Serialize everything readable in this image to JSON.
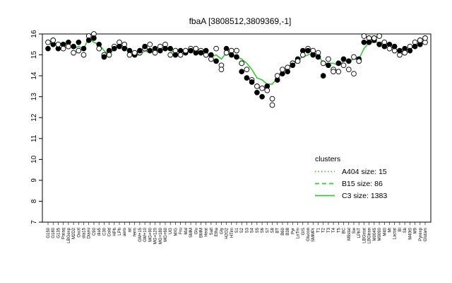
{
  "chart_data": {
    "type": "line",
    "title": "fbaA [3808512,3809369,-1]",
    "xlabel": "",
    "ylabel": "",
    "ylim": [
      7,
      16
    ],
    "yticks": [
      7,
      8,
      9,
      10,
      11,
      12,
      13,
      14,
      15,
      16
    ],
    "grid": false,
    "legend": {
      "title": "clusters",
      "placement": "right",
      "entries": [
        {
          "label": "A404 size: 15",
          "style": "dotted",
          "color": "#33cc33"
        },
        {
          "label": "B15 size: 86",
          "style": "dashed",
          "color": "#33cc33"
        },
        {
          "label": "C3 size: 1383",
          "style": "solid",
          "color": "#33cc33"
        }
      ]
    },
    "x_tick_labels": [
      "G150",
      "G180",
      "G135",
      "Paraq",
      "LBGexp",
      "M2D2",
      "Oxctl",
      "dia15",
      "Diami",
      "C90",
      "dia5",
      "C30",
      "Cold",
      "HPh",
      "LPh",
      "aero",
      "nit",
      "ferm",
      "GM+15",
      "GM+10",
      "MG+90",
      "MG+120",
      "MG+180",
      "MG+60",
      "UG",
      "M/G",
      "Fru",
      "Mal",
      "SMM",
      "Glu",
      "BMM",
      "Heat",
      "Salt",
      "Etha",
      "Gly",
      "H2O2",
      "HTim",
      "S1",
      "S2",
      "S3",
      "S4",
      "S5",
      "S6",
      "S7",
      "S8",
      "BT",
      "B60",
      "B38",
      "Pyr",
      "LoTm",
      "GIS",
      "Glucon",
      "SMMPr",
      "T1",
      "T2",
      "T3",
      "T4",
      "T5",
      "BC",
      "M9stat",
      "Sw",
      "LPhT",
      "LBGstat",
      "LBGtran",
      "M0045",
      "M0090",
      "M40",
      "Mt",
      "Lactat",
      "BI",
      "Sb",
      "M40t0",
      "M9",
      "Pyrexp",
      "Glutam"
    ],
    "series": [
      {
        "name": "",
        "style": "solid",
        "color": "#33cc33",
        "values": [
          15.7,
          15.6,
          15.5,
          15.6,
          15.5,
          15.3,
          15.4,
          15.3,
          15.8,
          15.6,
          15.5,
          15.2,
          15.0,
          15.3,
          15.4,
          15.5,
          15.2,
          15.0,
          15.0,
          15.2,
          15.1,
          15.2,
          15.2,
          15.3,
          15.2,
          15.1,
          15.0,
          15.1,
          15.2,
          15.2,
          15.2,
          15.0,
          14.9,
          15.0,
          14.8,
          15.1,
          15.0,
          14.9,
          14.8,
          14.6,
          14.3,
          13.9,
          13.8,
          13.6,
          13.6,
          13.9,
          14.2,
          14.4,
          14.6,
          14.8,
          14.9,
          15.0,
          15.1,
          15.0,
          14.6,
          14.6,
          14.6,
          14.5,
          14.7,
          14.7,
          14.8,
          14.8,
          15.3,
          15.6,
          15.6,
          15.6,
          15.6,
          15.4,
          15.3,
          15.1,
          15.2,
          15.3,
          15.4,
          15.5,
          15.6
        ]
      }
    ],
    "points": [
      {
        "x": 0,
        "y": 15.3,
        "filled": true
      },
      {
        "x": 0,
        "y": 15.6,
        "filled": false
      },
      {
        "x": 1,
        "y": 15.5,
        "filled": true
      },
      {
        "x": 1,
        "y": 15.7,
        "filled": false
      },
      {
        "x": 2,
        "y": 15.3,
        "filled": true
      },
      {
        "x": 2,
        "y": 15.5,
        "filled": false
      },
      {
        "x": 3,
        "y": 15.5,
        "filled": true
      },
      {
        "x": 3,
        "y": 15.3,
        "filled": false
      },
      {
        "x": 4,
        "y": 15.6,
        "filled": true
      },
      {
        "x": 4,
        "y": 15.4,
        "filled": false
      },
      {
        "x": 5,
        "y": 15.1,
        "filled": false
      },
      {
        "x": 5,
        "y": 15.4,
        "filled": true
      },
      {
        "x": 6,
        "y": 15.6,
        "filled": true
      },
      {
        "x": 6,
        "y": 15.2,
        "filled": false
      },
      {
        "x": 7,
        "y": 15.0,
        "filled": false
      },
      {
        "x": 7,
        "y": 15.3,
        "filled": true
      },
      {
        "x": 8,
        "y": 15.9,
        "filled": false
      },
      {
        "x": 8,
        "y": 15.7,
        "filled": true
      },
      {
        "x": 9,
        "y": 16.0,
        "filled": false
      },
      {
        "x": 9,
        "y": 15.8,
        "filled": true
      },
      {
        "x": 10,
        "y": 15.5,
        "filled": true
      },
      {
        "x": 10,
        "y": 15.3,
        "filled": false
      },
      {
        "x": 11,
        "y": 15.0,
        "filled": false
      },
      {
        "x": 11,
        "y": 14.9,
        "filled": true
      },
      {
        "x": 12,
        "y": 15.2,
        "filled": true
      },
      {
        "x": 12,
        "y": 15.0,
        "filled": false
      },
      {
        "x": 13,
        "y": 15.4,
        "filled": false
      },
      {
        "x": 13,
        "y": 15.3,
        "filled": true
      },
      {
        "x": 14,
        "y": 15.6,
        "filled": false
      },
      {
        "x": 14,
        "y": 15.4,
        "filled": true
      },
      {
        "x": 15,
        "y": 15.5,
        "filled": false
      },
      {
        "x": 15,
        "y": 15.3,
        "filled": true
      },
      {
        "x": 16,
        "y": 15.2,
        "filled": true
      },
      {
        "x": 16,
        "y": 15.0,
        "filled": false
      },
      {
        "x": 17,
        "y": 15.0,
        "filled": true
      },
      {
        "x": 17,
        "y": 15.1,
        "filled": false
      },
      {
        "x": 18,
        "y": 15.1,
        "filled": false
      },
      {
        "x": 18,
        "y": 15.2,
        "filled": true
      },
      {
        "x": 19,
        "y": 15.3,
        "filled": false
      },
      {
        "x": 19,
        "y": 15.4,
        "filled": true
      },
      {
        "x": 20,
        "y": 15.2,
        "filled": true
      },
      {
        "x": 20,
        "y": 15.5,
        "filled": false
      },
      {
        "x": 21,
        "y": 15.3,
        "filled": true
      },
      {
        "x": 21,
        "y": 15.1,
        "filled": false
      },
      {
        "x": 22,
        "y": 15.4,
        "filled": false
      },
      {
        "x": 22,
        "y": 15.2,
        "filled": true
      },
      {
        "x": 23,
        "y": 15.5,
        "filled": false
      },
      {
        "x": 23,
        "y": 15.3,
        "filled": true
      },
      {
        "x": 24,
        "y": 15.3,
        "filled": true
      },
      {
        "x": 24,
        "y": 15.0,
        "filled": false
      },
      {
        "x": 25,
        "y": 15.2,
        "filled": false
      },
      {
        "x": 25,
        "y": 15.0,
        "filled": true
      },
      {
        "x": 26,
        "y": 15.2,
        "filled": true
      },
      {
        "x": 26,
        "y": 15.0,
        "filled": false
      },
      {
        "x": 27,
        "y": 15.1,
        "filled": true
      },
      {
        "x": 27,
        "y": 15.2,
        "filled": false
      },
      {
        "x": 28,
        "y": 15.3,
        "filled": false
      },
      {
        "x": 28,
        "y": 15.2,
        "filled": true
      },
      {
        "x": 29,
        "y": 15.1,
        "filled": true
      },
      {
        "x": 29,
        "y": 15.3,
        "filled": false
      },
      {
        "x": 30,
        "y": 15.2,
        "filled": false
      },
      {
        "x": 30,
        "y": 15.1,
        "filled": true
      },
      {
        "x": 31,
        "y": 15.0,
        "filled": false
      },
      {
        "x": 31,
        "y": 15.2,
        "filled": true
      },
      {
        "x": 32,
        "y": 14.8,
        "filled": false
      },
      {
        "x": 32,
        "y": 15.0,
        "filled": true
      },
      {
        "x": 33,
        "y": 15.3,
        "filled": false
      },
      {
        "x": 33,
        "y": 14.7,
        "filled": true
      },
      {
        "x": 34,
        "y": 14.5,
        "filled": false
      },
      {
        "x": 34,
        "y": 14.3,
        "filled": false
      },
      {
        "x": 35,
        "y": 15.3,
        "filled": true
      },
      {
        "x": 35,
        "y": 15.1,
        "filled": false
      },
      {
        "x": 36,
        "y": 15.2,
        "filled": false
      },
      {
        "x": 36,
        "y": 15.0,
        "filled": true
      },
      {
        "x": 37,
        "y": 15.2,
        "filled": false
      },
      {
        "x": 37,
        "y": 14.9,
        "filled": true
      },
      {
        "x": 38,
        "y": 14.6,
        "filled": false
      },
      {
        "x": 38,
        "y": 14.2,
        "filled": true
      },
      {
        "x": 39,
        "y": 14.3,
        "filled": false
      },
      {
        "x": 39,
        "y": 13.9,
        "filled": true
      },
      {
        "x": 40,
        "y": 13.8,
        "filled": false
      },
      {
        "x": 40,
        "y": 13.7,
        "filled": true
      },
      {
        "x": 41,
        "y": 13.5,
        "filled": false
      },
      {
        "x": 41,
        "y": 13.2,
        "filled": true
      },
      {
        "x": 42,
        "y": 13.0,
        "filled": true
      },
      {
        "x": 42,
        "y": 13.4,
        "filled": false
      },
      {
        "x": 43,
        "y": 13.5,
        "filled": true
      },
      {
        "x": 43,
        "y": 13.3,
        "filled": false
      },
      {
        "x": 44,
        "y": 12.6,
        "filled": false
      },
      {
        "x": 44,
        "y": 12.9,
        "filled": false
      },
      {
        "x": 45,
        "y": 13.8,
        "filled": true
      },
      {
        "x": 45,
        "y": 14.0,
        "filled": false
      },
      {
        "x": 46,
        "y": 14.1,
        "filled": true
      },
      {
        "x": 46,
        "y": 14.3,
        "filled": false
      },
      {
        "x": 47,
        "y": 14.4,
        "filled": false
      },
      {
        "x": 47,
        "y": 14.2,
        "filled": true
      },
      {
        "x": 48,
        "y": 14.6,
        "filled": false
      },
      {
        "x": 48,
        "y": 14.5,
        "filled": true
      },
      {
        "x": 49,
        "y": 14.8,
        "filled": true
      },
      {
        "x": 49,
        "y": 14.7,
        "filled": false
      },
      {
        "x": 50,
        "y": 15.2,
        "filled": true
      },
      {
        "x": 50,
        "y": 15.0,
        "filled": false
      },
      {
        "x": 51,
        "y": 15.3,
        "filled": false
      },
      {
        "x": 51,
        "y": 15.2,
        "filled": true
      },
      {
        "x": 52,
        "y": 15.2,
        "filled": false
      },
      {
        "x": 52,
        "y": 15.0,
        "filled": true
      },
      {
        "x": 53,
        "y": 15.1,
        "filled": false
      },
      {
        "x": 53,
        "y": 14.9,
        "filled": true
      },
      {
        "x": 54,
        "y": 14.0,
        "filled": true
      },
      {
        "x": 54,
        "y": 14.6,
        "filled": false
      },
      {
        "x": 55,
        "y": 14.5,
        "filled": true
      },
      {
        "x": 55,
        "y": 14.8,
        "filled": false
      },
      {
        "x": 56,
        "y": 14.3,
        "filled": false
      },
      {
        "x": 56,
        "y": 14.2,
        "filled": false
      },
      {
        "x": 57,
        "y": 14.2,
        "filled": false
      },
      {
        "x": 57,
        "y": 14.6,
        "filled": true
      },
      {
        "x": 58,
        "y": 14.8,
        "filled": true
      },
      {
        "x": 58,
        "y": 14.5,
        "filled": false
      },
      {
        "x": 59,
        "y": 14.3,
        "filled": false
      },
      {
        "x": 59,
        "y": 14.7,
        "filled": true
      },
      {
        "x": 60,
        "y": 14.1,
        "filled": false
      },
      {
        "x": 60,
        "y": 14.9,
        "filled": false
      },
      {
        "x": 61,
        "y": 14.8,
        "filled": true
      },
      {
        "x": 61,
        "y": 14.7,
        "filled": false
      },
      {
        "x": 62,
        "y": 15.6,
        "filled": true
      },
      {
        "x": 62,
        "y": 15.9,
        "filled": false
      },
      {
        "x": 63,
        "y": 15.8,
        "filled": false
      },
      {
        "x": 63,
        "y": 15.6,
        "filled": true
      },
      {
        "x": 64,
        "y": 15.7,
        "filled": true
      },
      {
        "x": 64,
        "y": 15.8,
        "filled": false
      },
      {
        "x": 65,
        "y": 15.9,
        "filled": false
      },
      {
        "x": 65,
        "y": 15.5,
        "filled": true
      },
      {
        "x": 66,
        "y": 15.6,
        "filled": false
      },
      {
        "x": 66,
        "y": 15.4,
        "filled": true
      },
      {
        "x": 67,
        "y": 15.5,
        "filled": true
      },
      {
        "x": 67,
        "y": 15.3,
        "filled": false
      },
      {
        "x": 68,
        "y": 15.2,
        "filled": false
      },
      {
        "x": 68,
        "y": 15.4,
        "filled": true
      },
      {
        "x": 69,
        "y": 15.0,
        "filled": false
      },
      {
        "x": 69,
        "y": 15.2,
        "filled": true
      },
      {
        "x": 70,
        "y": 15.3,
        "filled": true
      },
      {
        "x": 70,
        "y": 15.1,
        "filled": false
      },
      {
        "x": 71,
        "y": 15.4,
        "filled": false
      },
      {
        "x": 71,
        "y": 15.2,
        "filled": true
      },
      {
        "x": 72,
        "y": 15.6,
        "filled": false
      },
      {
        "x": 72,
        "y": 15.4,
        "filled": true
      },
      {
        "x": 73,
        "y": 15.5,
        "filled": true
      },
      {
        "x": 73,
        "y": 15.7,
        "filled": false
      },
      {
        "x": 74,
        "y": 15.6,
        "filled": false
      },
      {
        "x": 74,
        "y": 15.8,
        "filled": false
      }
    ]
  }
}
